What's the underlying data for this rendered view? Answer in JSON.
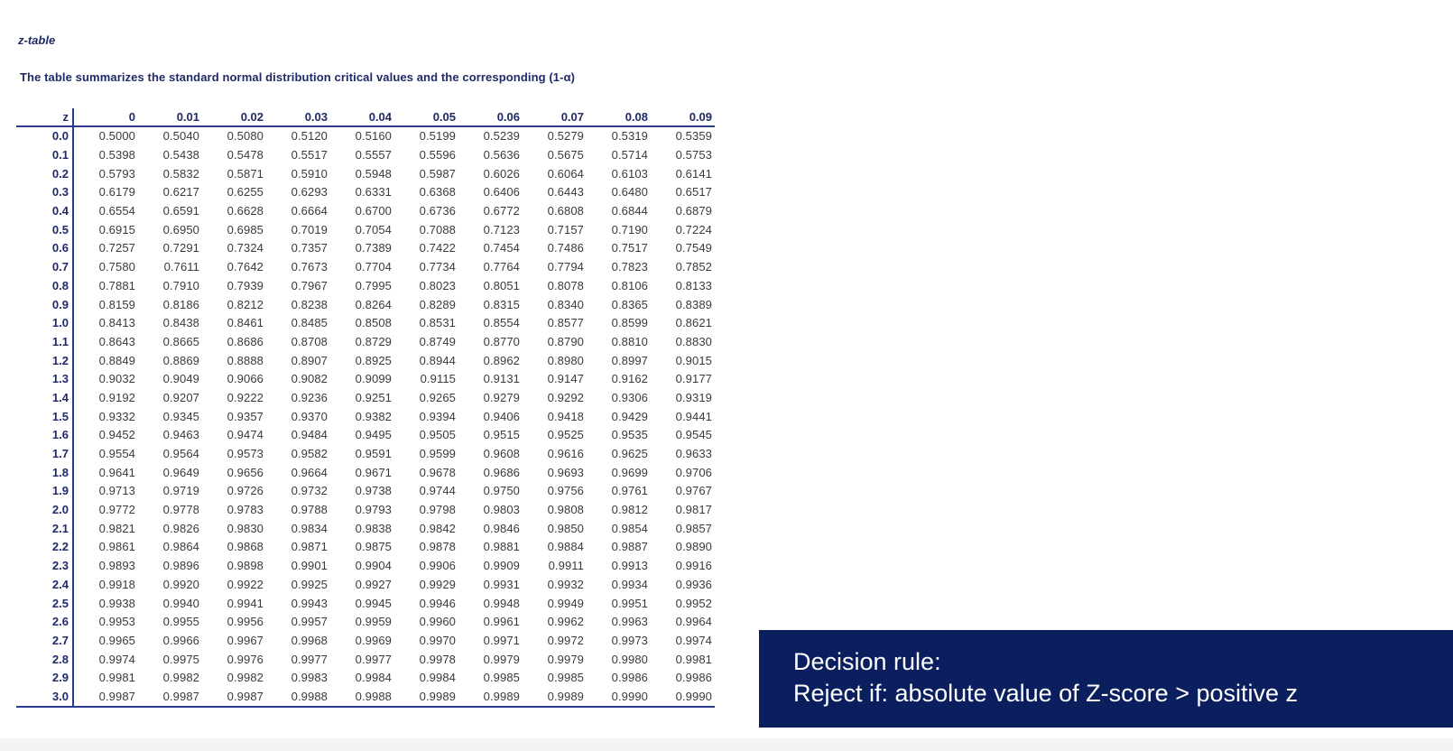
{
  "doc": {
    "title": "z-table",
    "subtitle": "The table summarizes the standard normal distribution critical values and the corresponding (1-α)"
  },
  "table": {
    "z_header": "z",
    "columns": [
      "0",
      "0.01",
      "0.02",
      "0.03",
      "0.04",
      "0.05",
      "0.06",
      "0.07",
      "0.08",
      "0.09"
    ],
    "rows": [
      {
        "z": "0.0",
        "values": [
          "0.5000",
          "0.5040",
          "0.5080",
          "0.5120",
          "0.5160",
          "0.5199",
          "0.5239",
          "0.5279",
          "0.5319",
          "0.5359"
        ]
      },
      {
        "z": "0.1",
        "values": [
          "0.5398",
          "0.5438",
          "0.5478",
          "0.5517",
          "0.5557",
          "0.5596",
          "0.5636",
          "0.5675",
          "0.5714",
          "0.5753"
        ]
      },
      {
        "z": "0.2",
        "values": [
          "0.5793",
          "0.5832",
          "0.5871",
          "0.5910",
          "0.5948",
          "0.5987",
          "0.6026",
          "0.6064",
          "0.6103",
          "0.6141"
        ]
      },
      {
        "z": "0.3",
        "values": [
          "0.6179",
          "0.6217",
          "0.6255",
          "0.6293",
          "0.6331",
          "0.6368",
          "0.6406",
          "0.6443",
          "0.6480",
          "0.6517"
        ]
      },
      {
        "z": "0.4",
        "values": [
          "0.6554",
          "0.6591",
          "0.6628",
          "0.6664",
          "0.6700",
          "0.6736",
          "0.6772",
          "0.6808",
          "0.6844",
          "0.6879"
        ]
      },
      {
        "z": "0.5",
        "values": [
          "0.6915",
          "0.6950",
          "0.6985",
          "0.7019",
          "0.7054",
          "0.7088",
          "0.7123",
          "0.7157",
          "0.7190",
          "0.7224"
        ]
      },
      {
        "z": "0.6",
        "values": [
          "0.7257",
          "0.7291",
          "0.7324",
          "0.7357",
          "0.7389",
          "0.7422",
          "0.7454",
          "0.7486",
          "0.7517",
          "0.7549"
        ]
      },
      {
        "z": "0.7",
        "values": [
          "0.7580",
          "0.7611",
          "0.7642",
          "0.7673",
          "0.7704",
          "0.7734",
          "0.7764",
          "0.7794",
          "0.7823",
          "0.7852"
        ]
      },
      {
        "z": "0.8",
        "values": [
          "0.7881",
          "0.7910",
          "0.7939",
          "0.7967",
          "0.7995",
          "0.8023",
          "0.8051",
          "0.8078",
          "0.8106",
          "0.8133"
        ]
      },
      {
        "z": "0.9",
        "values": [
          "0.8159",
          "0.8186",
          "0.8212",
          "0.8238",
          "0.8264",
          "0.8289",
          "0.8315",
          "0.8340",
          "0.8365",
          "0.8389"
        ]
      },
      {
        "z": "1.0",
        "values": [
          "0.8413",
          "0.8438",
          "0.8461",
          "0.8485",
          "0.8508",
          "0.8531",
          "0.8554",
          "0.8577",
          "0.8599",
          "0.8621"
        ]
      },
      {
        "z": "1.1",
        "values": [
          "0.8643",
          "0.8665",
          "0.8686",
          "0.8708",
          "0.8729",
          "0.8749",
          "0.8770",
          "0.8790",
          "0.8810",
          "0.8830"
        ]
      },
      {
        "z": "1.2",
        "values": [
          "0.8849",
          "0.8869",
          "0.8888",
          "0.8907",
          "0.8925",
          "0.8944",
          "0.8962",
          "0.8980",
          "0.8997",
          "0.9015"
        ]
      },
      {
        "z": "1.3",
        "values": [
          "0.9032",
          "0.9049",
          "0.9066",
          "0.9082",
          "0.9099",
          "0.9115",
          "0.9131",
          "0.9147",
          "0.9162",
          "0.9177"
        ]
      },
      {
        "z": "1.4",
        "values": [
          "0.9192",
          "0.9207",
          "0.9222",
          "0.9236",
          "0.9251",
          "0.9265",
          "0.9279",
          "0.9292",
          "0.9306",
          "0.9319"
        ]
      },
      {
        "z": "1.5",
        "values": [
          "0.9332",
          "0.9345",
          "0.9357",
          "0.9370",
          "0.9382",
          "0.9394",
          "0.9406",
          "0.9418",
          "0.9429",
          "0.9441"
        ]
      },
      {
        "z": "1.6",
        "values": [
          "0.9452",
          "0.9463",
          "0.9474",
          "0.9484",
          "0.9495",
          "0.9505",
          "0.9515",
          "0.9525",
          "0.9535",
          "0.9545"
        ]
      },
      {
        "z": "1.7",
        "values": [
          "0.9554",
          "0.9564",
          "0.9573",
          "0.9582",
          "0.9591",
          "0.9599",
          "0.9608",
          "0.9616",
          "0.9625",
          "0.9633"
        ]
      },
      {
        "z": "1.8",
        "values": [
          "0.9641",
          "0.9649",
          "0.9656",
          "0.9664",
          "0.9671",
          "0.9678",
          "0.9686",
          "0.9693",
          "0.9699",
          "0.9706"
        ]
      },
      {
        "z": "1.9",
        "values": [
          "0.9713",
          "0.9719",
          "0.9726",
          "0.9732",
          "0.9738",
          "0.9744",
          "0.9750",
          "0.9756",
          "0.9761",
          "0.9767"
        ]
      },
      {
        "z": "2.0",
        "values": [
          "0.9772",
          "0.9778",
          "0.9783",
          "0.9788",
          "0.9793",
          "0.9798",
          "0.9803",
          "0.9808",
          "0.9812",
          "0.9817"
        ]
      },
      {
        "z": "2.1",
        "values": [
          "0.9821",
          "0.9826",
          "0.9830",
          "0.9834",
          "0.9838",
          "0.9842",
          "0.9846",
          "0.9850",
          "0.9854",
          "0.9857"
        ]
      },
      {
        "z": "2.2",
        "values": [
          "0.9861",
          "0.9864",
          "0.9868",
          "0.9871",
          "0.9875",
          "0.9878",
          "0.9881",
          "0.9884",
          "0.9887",
          "0.9890"
        ]
      },
      {
        "z": "2.3",
        "values": [
          "0.9893",
          "0.9896",
          "0.9898",
          "0.9901",
          "0.9904",
          "0.9906",
          "0.9909",
          "0.9911",
          "0.9913",
          "0.9916"
        ]
      },
      {
        "z": "2.4",
        "values": [
          "0.9918",
          "0.9920",
          "0.9922",
          "0.9925",
          "0.9927",
          "0.9929",
          "0.9931",
          "0.9932",
          "0.9934",
          "0.9936"
        ]
      },
      {
        "z": "2.5",
        "values": [
          "0.9938",
          "0.9940",
          "0.9941",
          "0.9943",
          "0.9945",
          "0.9946",
          "0.9948",
          "0.9949",
          "0.9951",
          "0.9952"
        ]
      },
      {
        "z": "2.6",
        "values": [
          "0.9953",
          "0.9955",
          "0.9956",
          "0.9957",
          "0.9959",
          "0.9960",
          "0.9961",
          "0.9962",
          "0.9963",
          "0.9964"
        ]
      },
      {
        "z": "2.7",
        "values": [
          "0.9965",
          "0.9966",
          "0.9967",
          "0.9968",
          "0.9969",
          "0.9970",
          "0.9971",
          "0.9972",
          "0.9973",
          "0.9974"
        ]
      },
      {
        "z": "2.8",
        "values": [
          "0.9974",
          "0.9975",
          "0.9976",
          "0.9977",
          "0.9977",
          "0.9978",
          "0.9979",
          "0.9979",
          "0.9980",
          "0.9981"
        ]
      },
      {
        "z": "2.9",
        "values": [
          "0.9981",
          "0.9982",
          "0.9982",
          "0.9983",
          "0.9984",
          "0.9984",
          "0.9985",
          "0.9985",
          "0.9986",
          "0.9986"
        ]
      },
      {
        "z": "3.0",
        "values": [
          "0.9987",
          "0.9987",
          "0.9987",
          "0.9988",
          "0.9988",
          "0.9989",
          "0.9989",
          "0.9989",
          "0.9990",
          "0.9990"
        ]
      }
    ]
  },
  "decision_rule": {
    "line1": "Decision rule:",
    "line2": "Reject if: absolute value of Z-score > positive z"
  },
  "colors": {
    "accent_navy": "#0b1f5e",
    "table_rule": "#2b3a8f",
    "heading_text": "#1f2a66"
  }
}
